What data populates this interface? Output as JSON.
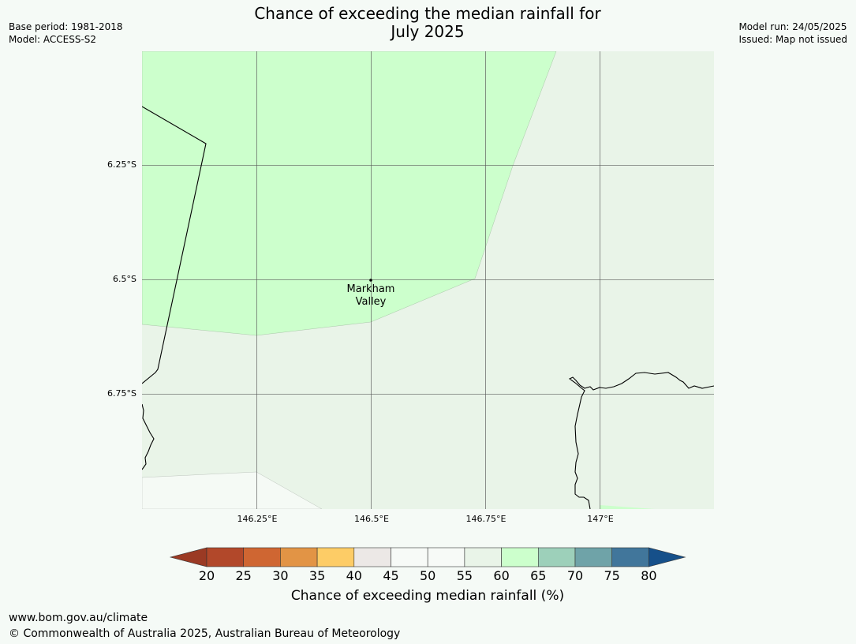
{
  "title": {
    "line1": "Chance of exceeding the median rainfall for",
    "line2": "July 2025"
  },
  "meta_left": {
    "base_period": "Base period: 1981-2018",
    "model": "Model: ACCESS-S2"
  },
  "meta_right": {
    "model_run": "Model run: 24/05/2025",
    "issued": "Issued: Map not issued"
  },
  "map": {
    "place_label": {
      "line1": "Markham",
      "line2": "Valley"
    },
    "lat_labels": [
      "6.25°S",
      "6.5°S",
      "6.75°S"
    ],
    "lon_labels": [
      "146.25°E",
      "146.5°E",
      "146.75°E",
      "147°E"
    ],
    "colors": {
      "zone_60_65": "#ccffcc",
      "zone_55_60": "#e9f4e8",
      "coast": "#000000",
      "grid": "#555555"
    }
  },
  "colorbar": {
    "ticks": [
      "20",
      "25",
      "30",
      "35",
      "40",
      "45",
      "50",
      "55",
      "60",
      "65",
      "70",
      "75",
      "80"
    ],
    "colors": [
      "#9b3a24",
      "#b2482a",
      "#cf6632",
      "#e29445",
      "#fdcc66",
      "#ece8e6",
      "#f7faf7",
      "#f7faf7",
      "#e9f4e8",
      "#ccffcc",
      "#9dd0ba",
      "#6fa3a8",
      "#41769b",
      "#16508a"
    ],
    "title": "Chance of exceeding median rainfall (%)"
  },
  "footer": {
    "url": "www.bom.gov.au/climate",
    "copyright": "© Commonwealth of Australia 2025, Australian Bureau of Meteorology"
  }
}
